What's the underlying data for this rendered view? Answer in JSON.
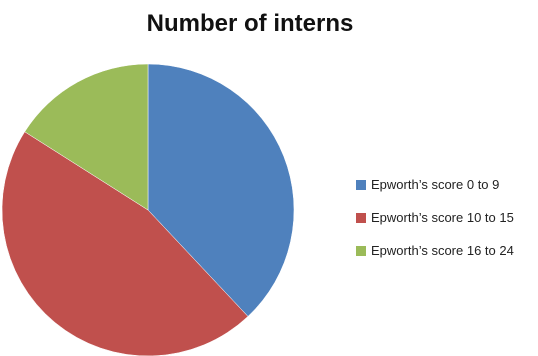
{
  "chart_data": {
    "type": "pie",
    "title": "Number of interns",
    "categories": [
      "Epworth’s score 0 to 9",
      "Epworth’s score 10 to 15",
      "Epworth’s score 16 to 24"
    ],
    "values": [
      38,
      46,
      16
    ],
    "colors": [
      "#4f81bd",
      "#c0504d",
      "#9bbb59"
    ],
    "start_angle_deg": 0,
    "direction": "clockwise",
    "legend_position": "right"
  }
}
